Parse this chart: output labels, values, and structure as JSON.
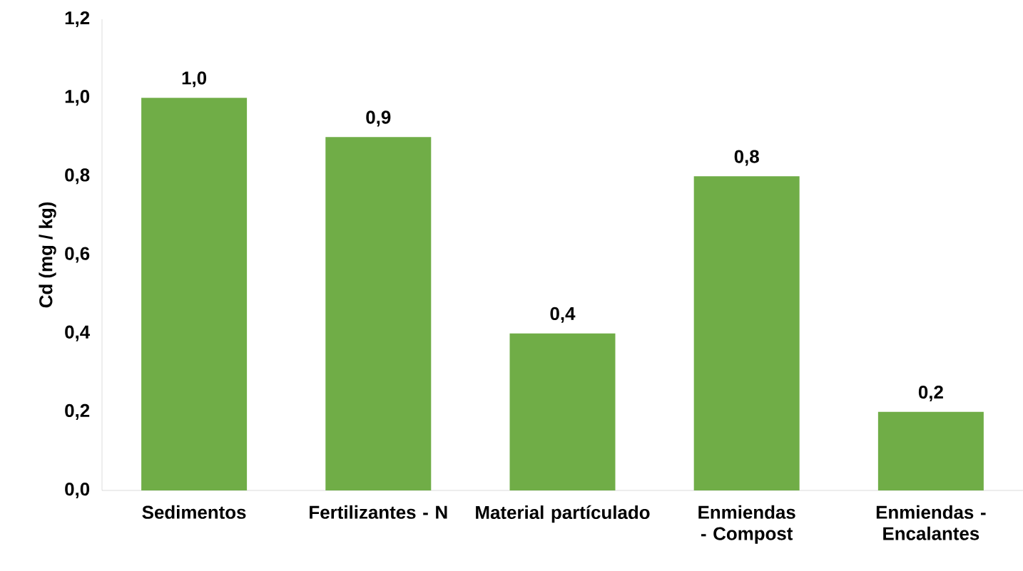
{
  "chart_data": {
    "type": "bar",
    "ylabel": "Cd (mg / kg)",
    "categories": [
      "Sedimentos",
      "Fertilizantes - N",
      "Material partículado",
      "Enmiendas - Compost",
      "Enmiendas - Encalantes"
    ],
    "values": [
      1.0,
      0.9,
      0.4,
      0.8,
      0.2
    ],
    "value_labels": [
      "1,0",
      "0,9",
      "0,4",
      "0,8",
      "0,2"
    ],
    "color": "#70ad47",
    "ylim": [
      0,
      1.2
    ],
    "yticks": [
      {
        "value": 0,
        "label": "0,0"
      },
      {
        "value": 0.2,
        "label": "0,2"
      },
      {
        "value": 0.4,
        "label": "0,4"
      },
      {
        "value": 0.6,
        "label": "0,6"
      },
      {
        "value": 0.8,
        "label": "0,8"
      },
      {
        "value": 1.0,
        "label": "1,0"
      },
      {
        "value": 1.2,
        "label": "1,2"
      }
    ],
    "grid": false
  }
}
